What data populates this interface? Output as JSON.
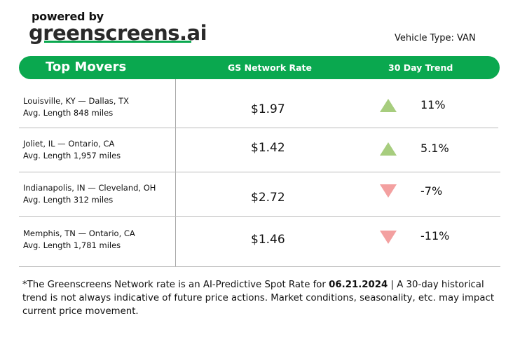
{
  "header": {
    "powered_by": "powered by",
    "brand": "greenscreens.ai",
    "vehicle_type": "Vehicle Type: VAN"
  },
  "table": {
    "title": "Top Movers",
    "col_rate": "GS Network Rate",
    "col_trend": "30 Day Trend",
    "rows": [
      {
        "lane": "Louisville, KY — Dallas, TX",
        "length": "Avg. Length 848 miles",
        "rate": "$1.97",
        "direction": "up",
        "trend": "11%"
      },
      {
        "lane": "Joliet, IL — Ontario, CA",
        "length": "Avg. Length 1,957 miles",
        "rate": "$1.42",
        "direction": "up",
        "trend": "5.1%"
      },
      {
        "lane": "Indianapolis, IN — Cleveland, OH",
        "length": "Avg. Length 312 miles",
        "rate": "$2.72",
        "direction": "down",
        "trend": "-7%"
      },
      {
        "lane": "Memphis, TN — Ontario, CA",
        "length": "Avg. Length 1,781 miles",
        "rate": "$1.46",
        "direction": "down",
        "trend": "-11%"
      }
    ]
  },
  "footnote": {
    "before": "*The Greenscreens Network rate is an AI-Predictive Spot Rate for ",
    "date": "06.21.2024",
    "after": " | A 30-day historical trend is not always indicative of future price actions. Market conditions, seasonality, etc. may impact current price movement."
  },
  "colors": {
    "brand_green": "#0aa84f",
    "up": "#a7cd7e",
    "down": "#f3a0a0"
  }
}
